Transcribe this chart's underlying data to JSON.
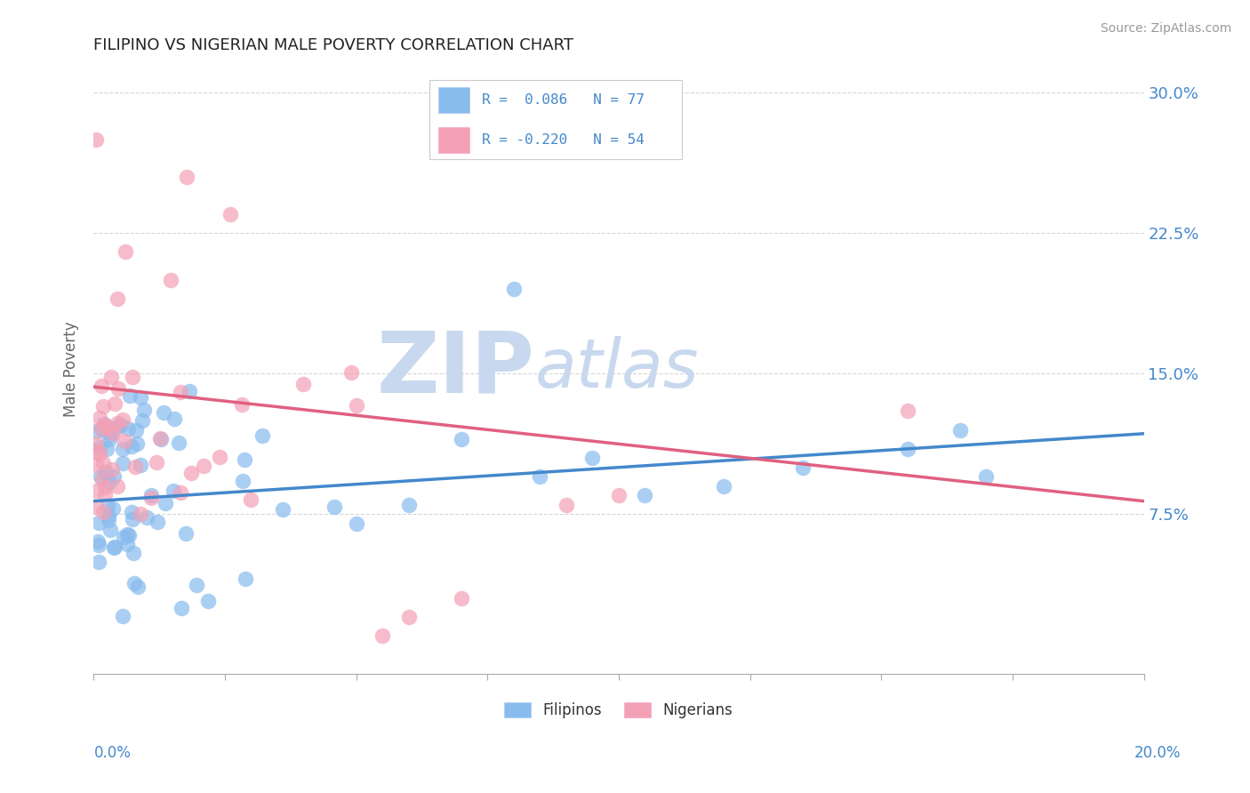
{
  "title": "FILIPINO VS NIGERIAN MALE POVERTY CORRELATION CHART",
  "source": "Source: ZipAtlas.com",
  "ylabel": "Male Poverty",
  "yticks": [
    0.075,
    0.15,
    0.225,
    0.3
  ],
  "ytick_labels": [
    "7.5%",
    "15.0%",
    "22.5%",
    "30.0%"
  ],
  "xlim": [
    0.0,
    0.2
  ],
  "ylim": [
    -0.01,
    0.315
  ],
  "filipino_color": "#88bbee",
  "nigerian_color": "#f4a0b5",
  "filipino_line_color": "#4488cc",
  "nigerian_line_color": "#e06080",
  "watermark_color": "#c8d8ee",
  "bg_color": "#ffffff",
  "grid_color": "#bbbbbb",
  "filipino_N": 77,
  "nigerian_N": 54,
  "fil_trend_x0": 0.0,
  "fil_trend_y0": 0.082,
  "fil_trend_x1": 0.2,
  "fil_trend_y1": 0.118,
  "nig_trend_x0": 0.0,
  "nig_trend_y0": 0.143,
  "nig_trend_x1": 0.2,
  "nig_trend_y1": 0.082,
  "legend_text_color": "#4488cc",
  "title_color": "#222222",
  "source_color": "#999999",
  "label_color": "#4488cc"
}
